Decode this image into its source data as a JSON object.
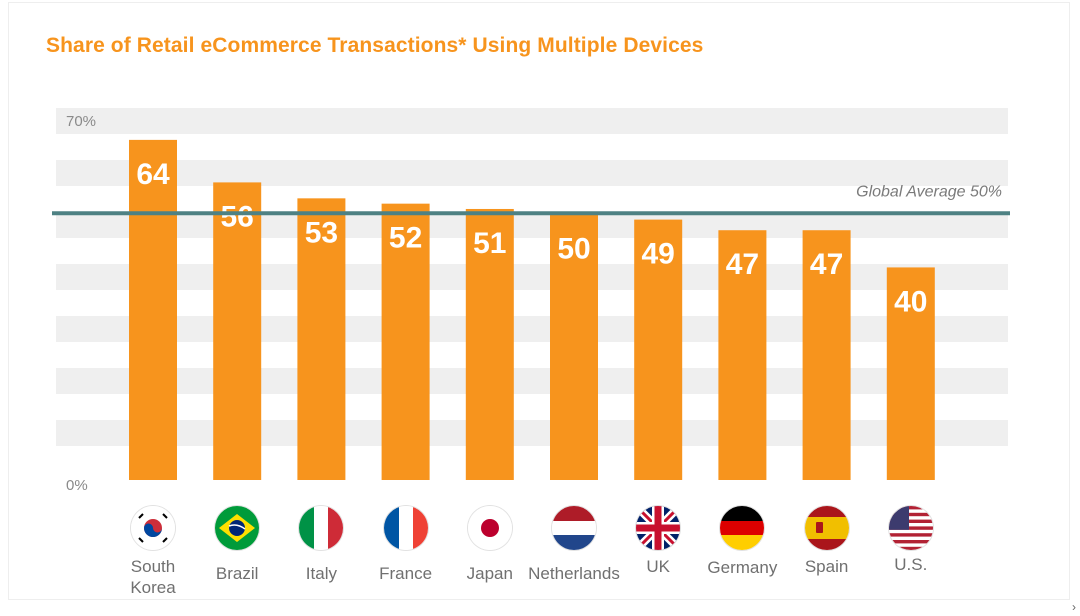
{
  "chart_data": {
    "type": "bar",
    "title": "Share of Retail eCommerce Transactions* Using Multiple Devices",
    "categories": [
      "South Korea",
      "Brazil",
      "Italy",
      "France",
      "Japan",
      "Netherlands",
      "UK",
      "Germany",
      "Spain",
      "U.S."
    ],
    "label_lines": [
      [
        "South",
        "Korea"
      ],
      [
        "Brazil"
      ],
      [
        "Italy"
      ],
      [
        "France"
      ],
      [
        "Japan"
      ],
      [
        "Netherlands"
      ],
      [
        "UK"
      ],
      [
        "Germany"
      ],
      [
        "Spain"
      ],
      [
        "U.S."
      ]
    ],
    "values": [
      64,
      56,
      53,
      52,
      51,
      50,
      49,
      47,
      47,
      40
    ],
    "data_labels": [
      "64",
      "56",
      "53",
      "52",
      "51",
      "50",
      "49",
      "47",
      "47",
      "40"
    ],
    "ylim": [
      0,
      70
    ],
    "yticks": [
      {
        "value": 70,
        "label": "70%"
      },
      {
        "value": 0,
        "label": "0%"
      }
    ],
    "reference_line": {
      "value": 50,
      "label": "Global Average 50%"
    },
    "xlabel": "",
    "ylabel": "",
    "grid": "alternating horizontal bands",
    "flags": [
      "kr-flag",
      "br-flag",
      "it-flag",
      "fr-flag",
      "jp-flag",
      "nl-flag",
      "uk-flag",
      "de-flag",
      "es-flag",
      "us-flag"
    ]
  },
  "colors": {
    "bar": "#F7941D",
    "title": "#F7941D",
    "reference_line": "#4E8183",
    "band": "#EFEFEF",
    "axis_text": "#8A8A8A",
    "data_label": "#FFFFFF",
    "country_text": "#707070"
  },
  "corner_mark": "›"
}
